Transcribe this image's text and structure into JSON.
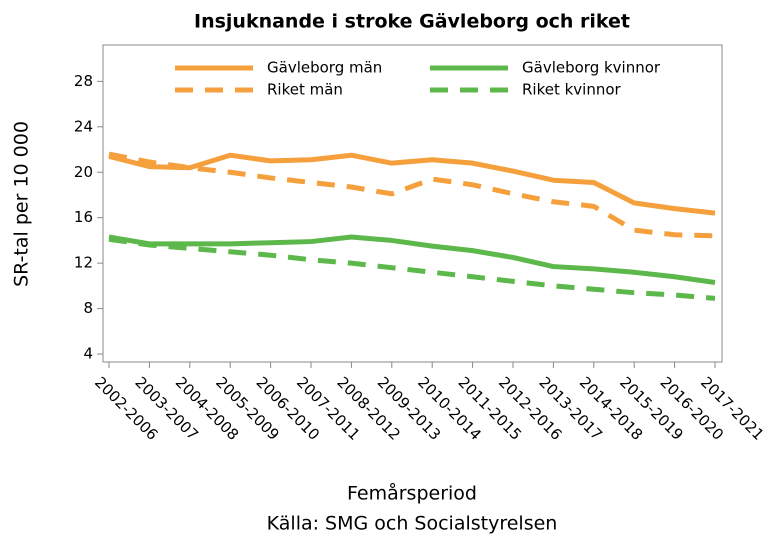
{
  "chart_data": {
    "type": "line",
    "title": "Insjuknande i stroke Gävleborg och riket",
    "y_label": "SR-tal per 10 000",
    "x_label": "Femårsperiod",
    "source": "Källa: SMG och Socialstyrelsen",
    "categories": [
      "2002-2006",
      "2003-2007",
      "2004-2008",
      "2005-2009",
      "2006-2010",
      "2007-2011",
      "2008-2012",
      "2009-2013",
      "2010-2014",
      "2011-2015",
      "2012-2016",
      "2013-2017",
      "2014-2018",
      "2015-2019",
      "2016-2020",
      "2017-2021"
    ],
    "series": [
      {
        "name": "Gävleborg män",
        "color": "#f5a03c",
        "dashed": false,
        "values": [
          21.4,
          20.5,
          20.4,
          21.5,
          21.0,
          21.1,
          21.5,
          20.8,
          21.1,
          20.8,
          20.1,
          19.3,
          19.1,
          17.3,
          16.8,
          16.4
        ]
      },
      {
        "name": "Gävleborg kvinnor",
        "color": "#5cb84a",
        "dashed": false,
        "values": [
          14.3,
          13.7,
          13.7,
          13.7,
          13.8,
          13.9,
          14.3,
          14.0,
          13.5,
          13.1,
          12.5,
          11.7,
          11.5,
          11.2,
          10.8,
          10.3
        ]
      },
      {
        "name": "Riket män",
        "color": "#f5a03c",
        "dashed": true,
        "values": [
          21.6,
          20.9,
          20.4,
          20.0,
          19.5,
          19.1,
          18.7,
          18.1,
          19.4,
          18.9,
          18.1,
          17.4,
          17.0,
          14.9,
          14.5,
          14.4
        ]
      },
      {
        "name": "Riket kvinnor",
        "color": "#5cb84a",
        "dashed": true,
        "values": [
          14.1,
          13.6,
          13.3,
          13.0,
          12.7,
          12.3,
          12.0,
          11.6,
          11.2,
          10.8,
          10.4,
          10.0,
          9.7,
          9.4,
          9.2,
          8.9
        ]
      }
    ],
    "ylim": [
      3.3,
      31.2
    ],
    "yticks": [
      4,
      8,
      12,
      16,
      20,
      24,
      28
    ],
    "grid": false,
    "legend": "top"
  }
}
